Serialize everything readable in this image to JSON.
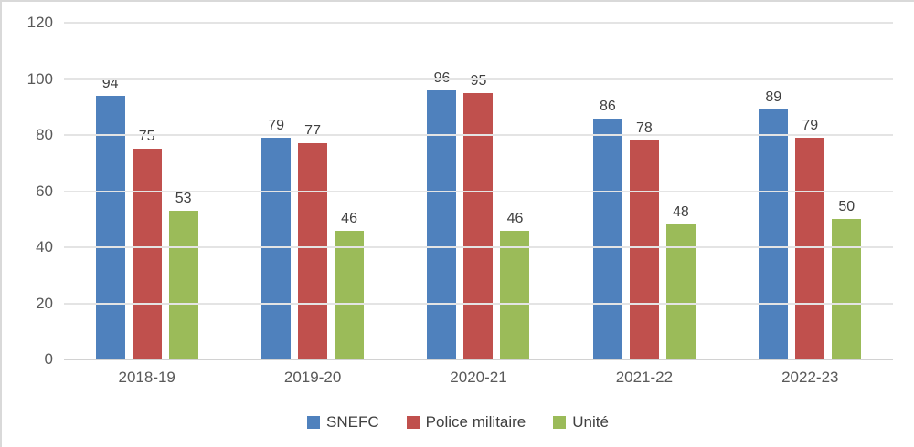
{
  "chart_data": {
    "type": "bar",
    "categories": [
      "2018-19",
      "2019-20",
      "2020-21",
      "2021-22",
      "2022-23"
    ],
    "series": [
      {
        "name": "SNEFC",
        "color": "#4F81BD",
        "values": [
          94,
          79,
          96,
          86,
          89
        ]
      },
      {
        "name": "Police militaire",
        "color": "#C0504D",
        "values": [
          75,
          77,
          95,
          78,
          79
        ]
      },
      {
        "name": "Unité",
        "color": "#9BBB59",
        "values": [
          53,
          46,
          46,
          48,
          50
        ]
      }
    ],
    "title": "",
    "xlabel": "",
    "ylabel": "",
    "ylim": [
      0,
      120
    ],
    "ytick_step": 20,
    "ytick_labels": [
      "0",
      "20",
      "40",
      "60",
      "80",
      "100",
      "120"
    ],
    "grid": true,
    "data_labels": true,
    "legend_position": "bottom"
  },
  "colors": {
    "background": "#FFFFFF",
    "gridline": "#E4E4E4",
    "axis_line": "#D2D2D2",
    "tick_label": "#595959",
    "data_label": "#404040",
    "chart_border": "#D9D9D9"
  }
}
